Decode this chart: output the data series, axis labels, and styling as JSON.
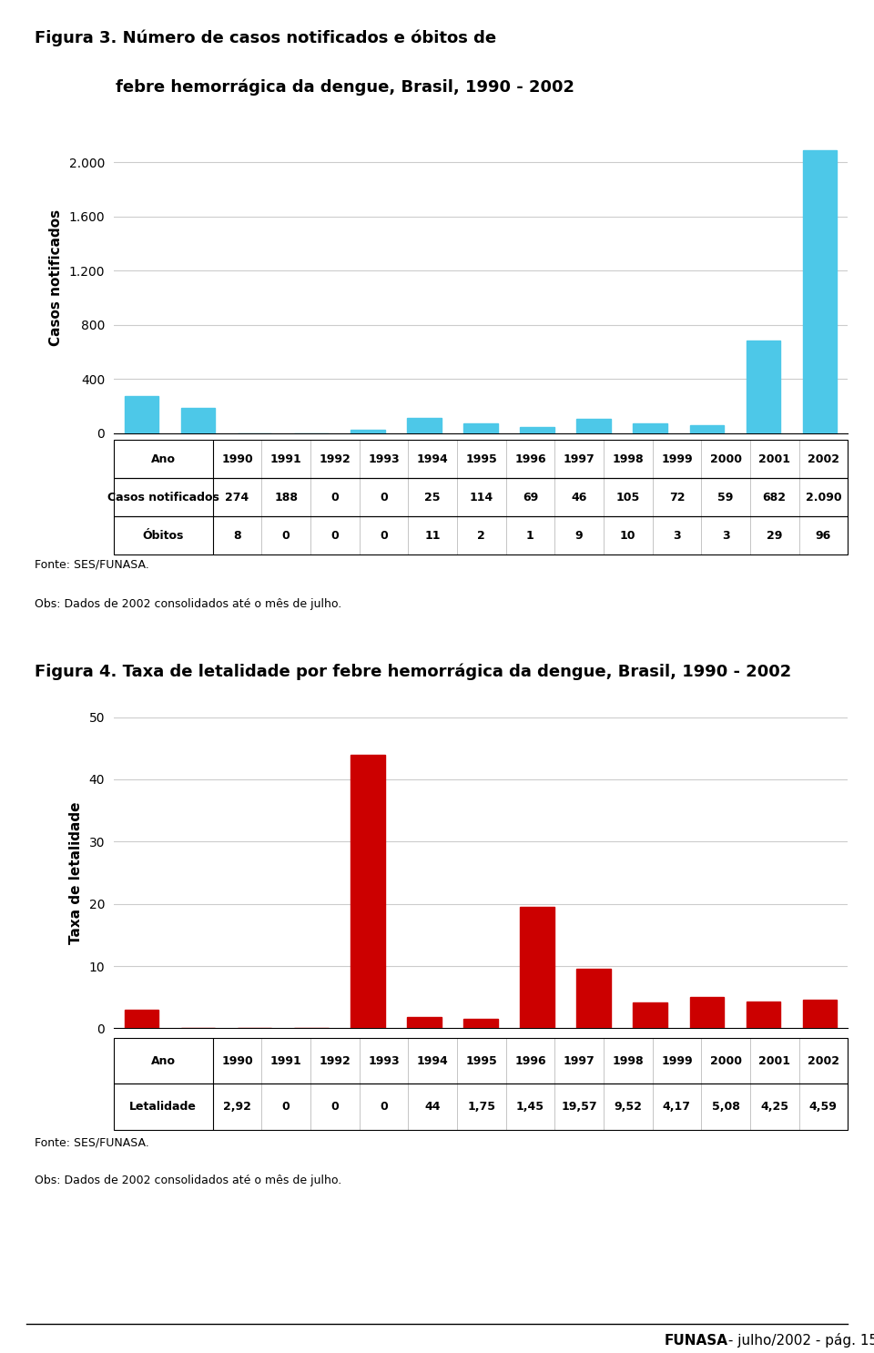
{
  "fig3_title_line1": "Figura 3. Número de casos notificados e óbitos de",
  "fig3_title_line2": "febre hemorrágica da dengue, Brasil, 1990 - 2002",
  "fig4_title": "Figura 4. Taxa de letalidade por febre hemorrágica da dengue, Brasil, 1990 - 2002",
  "years": [
    "1990",
    "1991",
    "1992",
    "1993",
    "1994",
    "1995",
    "1996",
    "1997",
    "1998",
    "1999",
    "2000",
    "2001",
    "2002"
  ],
  "casos": [
    274,
    188,
    0,
    0,
    25,
    114,
    69,
    46,
    105,
    72,
    59,
    682,
    2090
  ],
  "obitos": [
    8,
    0,
    0,
    0,
    11,
    2,
    1,
    9,
    10,
    3,
    3,
    29,
    96
  ],
  "letalidade": [
    2.92,
    0,
    0,
    0,
    44,
    1.75,
    1.45,
    19.57,
    9.52,
    4.17,
    5.08,
    4.25,
    4.59
  ],
  "bar_color_fig3": "#4DC8E8",
  "bar_color_fig4": "#CC0000",
  "fig3_ylabel": "Casos notificados",
  "fig4_ylabel": "Taxa de letalidade",
  "fig3_yticks": [
    0,
    400,
    800,
    1200,
    1600,
    2000
  ],
  "fig4_yticks": [
    0,
    10,
    20,
    30,
    40,
    50
  ],
  "fig3_ylim": [
    0,
    2300
  ],
  "fig4_ylim": [
    0,
    50
  ],
  "table1_row1_label": "Ano",
  "table1_row2_label": "Casos notificados",
  "table1_row3_label": "Óbitos",
  "table2_row1_label": "Ano",
  "table2_row2_label": "Letalidade",
  "fonte_text": "Fonte: SES/FUNASA.",
  "obs_text": "Obs: Dados de 2002 consolidados até o mês de julho.",
  "footer_bold": "FUNASA",
  "footer_normal": " - julho/2002 - pág. 15",
  "bg_color": "#FFFFFF",
  "grid_color": "#CCCCCC",
  "obitos_values_str": [
    "8",
    "0",
    "0",
    "0",
    "11",
    "2",
    "1",
    "9",
    "10",
    "3",
    "3",
    "29",
    "96"
  ],
  "casos_values_str": [
    "274",
    "188",
    "0",
    "0",
    "25",
    "114",
    "69",
    "46",
    "105",
    "72",
    "59",
    "682",
    "2.090"
  ],
  "letalidade_values_str": [
    "2,92",
    "0",
    "0",
    "0",
    "44",
    "1,75",
    "1,45",
    "19,57",
    "9,52",
    "4,17",
    "5,08",
    "4,25",
    "4,59"
  ]
}
